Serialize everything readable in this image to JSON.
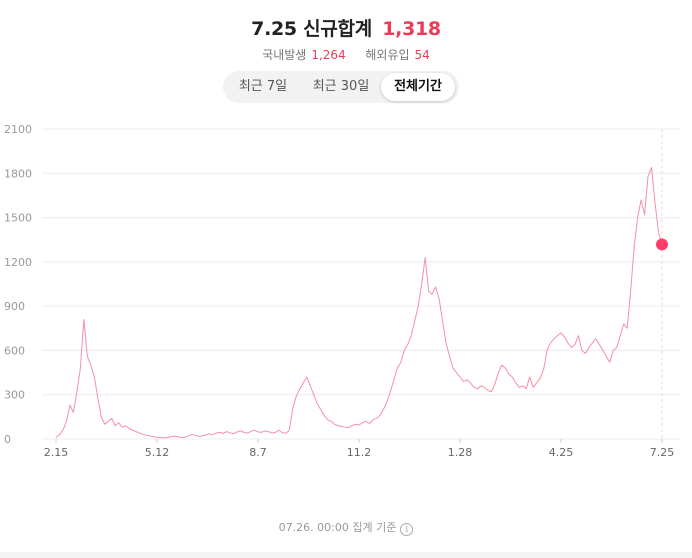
{
  "header": {
    "date": "7.25",
    "title": "신규합계",
    "total": "1,318",
    "domestic_label": "국내발생",
    "domestic_value": "1,264",
    "overseas_label": "해외유입",
    "overseas_value": "54"
  },
  "tabs": [
    {
      "label": "최근 7일",
      "active": false
    },
    {
      "label": "최근 30일",
      "active": false
    },
    {
      "label": "전체기간",
      "active": true
    }
  ],
  "footer": {
    "note": "07.26. 00:00 집계 기준",
    "info_icon": "info-icon"
  },
  "colors": {
    "line": "#f590a6",
    "marker": "#ff3d66",
    "accent": "#ee3a57"
  },
  "chart_data": {
    "type": "line",
    "title": "",
    "xlabel": "",
    "ylabel": "",
    "ylim": [
      0,
      2100
    ],
    "yticks": [
      "0",
      "300",
      "600",
      "900",
      "1200",
      "1500",
      "1800",
      "2100"
    ],
    "xticks": [
      "2.15",
      "5.12",
      "8.7",
      "11.2",
      "1.28",
      "4.25",
      "7.25"
    ],
    "grid": "horizontal",
    "highlight": {
      "x": "7.25",
      "y": 1318
    },
    "series": [
      {
        "values": [
          10,
          30,
          60,
          120,
          230,
          180,
          320,
          480,
          810,
          560,
          500,
          420,
          280,
          150,
          100,
          120,
          140,
          90,
          110,
          80,
          90,
          70,
          60,
          50,
          40,
          30,
          25,
          20,
          15,
          12,
          10,
          8,
          10,
          15,
          20,
          15,
          10,
          12,
          20,
          30,
          25,
          18,
          22,
          28,
          35,
          30,
          40,
          45,
          38,
          50,
          42,
          35,
          48,
          55,
          45,
          40,
          52,
          60,
          48,
          45,
          55,
          50,
          40,
          45,
          60,
          42,
          38,
          60,
          210,
          290,
          340,
          380,
          420,
          360,
          300,
          240,
          200,
          160,
          130,
          120,
          100,
          90,
          85,
          80,
          78,
          90,
          100,
          95,
          110,
          120,
          105,
          130,
          140,
          160,
          200,
          250,
          320,
          400,
          480,
          520,
          600,
          640,
          700,
          800,
          900,
          1050,
          1230,
          1000,
          980,
          1030,
          950,
          800,
          650,
          560,
          480,
          450,
          420,
          390,
          400,
          380,
          350,
          340,
          360,
          350,
          330,
          320,
          370,
          450,
          500,
          480,
          440,
          420,
          380,
          350,
          360,
          340,
          420,
          350,
          380,
          410,
          470,
          600,
          650,
          680,
          700,
          720,
          690,
          650,
          620,
          640,
          700,
          600,
          580,
          620,
          650,
          680,
          640,
          600,
          560,
          520,
          600,
          620,
          700,
          780,
          750,
          1000,
          1300,
          1500,
          1620,
          1520,
          1780,
          1840,
          1600,
          1400,
          1318
        ]
      }
    ]
  }
}
